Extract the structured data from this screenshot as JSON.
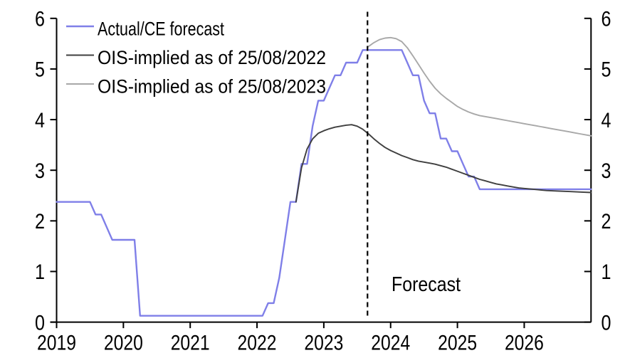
{
  "chart": {
    "background": "#ffffff",
    "axis_color": "#000000",
    "forecast_divider_style": "dashed"
  },
  "chart_data": {
    "type": "line",
    "title": "",
    "xlabel": "",
    "ylabel": "",
    "grid": false,
    "legend_position": "top-left",
    "xlim": [
      2019,
      2027
    ],
    "ylim": [
      0,
      6
    ],
    "x_ticks": [
      "2019",
      "2020",
      "2021",
      "2022",
      "2023",
      "2024",
      "2025",
      "2026"
    ],
    "x_tick_values": [
      2019,
      2020,
      2021,
      2022,
      2023,
      2024,
      2025,
      2026
    ],
    "y_ticks": [
      "0",
      "1",
      "2",
      "3",
      "4",
      "5",
      "6"
    ],
    "y_tick_values": [
      0,
      1,
      2,
      3,
      4,
      5,
      6
    ],
    "dual_y_axis": true,
    "annotations": [
      {
        "type": "vline",
        "x": 2023.654,
        "label": "Forecast",
        "style": "dashed",
        "color": "#000000"
      }
    ],
    "series": [
      {
        "name": "Actual/CE forecast",
        "color": "#7f7fe8",
        "width": 2.4,
        "points": [
          [
            2019.0,
            2.375
          ],
          [
            2019.5,
            2.375
          ],
          [
            2019.583,
            2.125
          ],
          [
            2019.667,
            2.125
          ],
          [
            2019.75,
            1.875
          ],
          [
            2019.833,
            1.625
          ],
          [
            2020.167,
            1.625
          ],
          [
            2020.25,
            0.125
          ],
          [
            2022.083,
            0.125
          ],
          [
            2022.167,
            0.375
          ],
          [
            2022.25,
            0.375
          ],
          [
            2022.333,
            0.875
          ],
          [
            2022.417,
            1.625
          ],
          [
            2022.5,
            2.375
          ],
          [
            2022.583,
            2.375
          ],
          [
            2022.667,
            3.125
          ],
          [
            2022.75,
            3.125
          ],
          [
            2022.833,
            3.875
          ],
          [
            2022.917,
            4.375
          ],
          [
            2023.0,
            4.375
          ],
          [
            2023.083,
            4.625
          ],
          [
            2023.167,
            4.875
          ],
          [
            2023.25,
            4.875
          ],
          [
            2023.333,
            5.125
          ],
          [
            2023.5,
            5.125
          ],
          [
            2023.583,
            5.375
          ],
          [
            2024.167,
            5.375
          ],
          [
            2024.25,
            5.125
          ],
          [
            2024.333,
            4.875
          ],
          [
            2024.417,
            4.875
          ],
          [
            2024.5,
            4.375
          ],
          [
            2024.583,
            4.125
          ],
          [
            2024.667,
            4.125
          ],
          [
            2024.75,
            3.625
          ],
          [
            2024.833,
            3.625
          ],
          [
            2024.917,
            3.375
          ],
          [
            2025.0,
            3.375
          ],
          [
            2025.083,
            3.125
          ],
          [
            2025.167,
            2.875
          ],
          [
            2025.25,
            2.875
          ],
          [
            2025.333,
            2.625
          ],
          [
            2027.0,
            2.625
          ]
        ]
      },
      {
        "name": "OIS-implied as of 25/08/2022",
        "color": "#3f3f3f",
        "width": 1.9,
        "points": [
          [
            2022.583,
            2.375
          ],
          [
            2022.667,
            3.05
          ],
          [
            2022.75,
            3.42
          ],
          [
            2022.833,
            3.62
          ],
          [
            2022.917,
            3.73
          ],
          [
            2023.0,
            3.78
          ],
          [
            2023.083,
            3.82
          ],
          [
            2023.167,
            3.85
          ],
          [
            2023.25,
            3.87
          ],
          [
            2023.333,
            3.89
          ],
          [
            2023.417,
            3.9
          ],
          [
            2023.5,
            3.87
          ],
          [
            2023.583,
            3.81
          ],
          [
            2023.667,
            3.72
          ],
          [
            2023.75,
            3.62
          ],
          [
            2023.833,
            3.53
          ],
          [
            2023.917,
            3.45
          ],
          [
            2024.0,
            3.39
          ],
          [
            2024.083,
            3.34
          ],
          [
            2024.167,
            3.29
          ],
          [
            2024.25,
            3.25
          ],
          [
            2024.333,
            3.21
          ],
          [
            2024.417,
            3.18
          ],
          [
            2024.5,
            3.16
          ],
          [
            2024.583,
            3.14
          ],
          [
            2024.667,
            3.12
          ],
          [
            2024.75,
            3.09
          ],
          [
            2024.833,
            3.06
          ],
          [
            2024.917,
            3.02
          ],
          [
            2025.0,
            2.98
          ],
          [
            2025.083,
            2.94
          ],
          [
            2025.167,
            2.9
          ],
          [
            2025.25,
            2.86
          ],
          [
            2025.333,
            2.82
          ],
          [
            2025.417,
            2.79
          ],
          [
            2025.5,
            2.76
          ],
          [
            2025.583,
            2.73
          ],
          [
            2025.667,
            2.71
          ],
          [
            2025.75,
            2.69
          ],
          [
            2025.833,
            2.67
          ],
          [
            2025.917,
            2.65
          ],
          [
            2026.0,
            2.64
          ],
          [
            2026.167,
            2.62
          ],
          [
            2026.333,
            2.6
          ],
          [
            2026.5,
            2.59
          ],
          [
            2026.667,
            2.58
          ],
          [
            2026.833,
            2.57
          ],
          [
            2027.0,
            2.56
          ]
        ]
      },
      {
        "name": "OIS-implied as of 25/08/2023",
        "color": "#a8a8a8",
        "width": 1.9,
        "points": [
          [
            2023.654,
            5.43
          ],
          [
            2023.75,
            5.52
          ],
          [
            2023.833,
            5.58
          ],
          [
            2023.917,
            5.61
          ],
          [
            2024.0,
            5.62
          ],
          [
            2024.083,
            5.6
          ],
          [
            2024.167,
            5.54
          ],
          [
            2024.25,
            5.42
          ],
          [
            2024.333,
            5.26
          ],
          [
            2024.417,
            5.09
          ],
          [
            2024.5,
            4.92
          ],
          [
            2024.583,
            4.76
          ],
          [
            2024.667,
            4.62
          ],
          [
            2024.75,
            4.51
          ],
          [
            2024.833,
            4.42
          ],
          [
            2024.917,
            4.34
          ],
          [
            2025.0,
            4.26
          ],
          [
            2025.083,
            4.2
          ],
          [
            2025.167,
            4.15
          ],
          [
            2025.25,
            4.11
          ],
          [
            2025.333,
            4.08
          ],
          [
            2025.417,
            4.06
          ],
          [
            2025.5,
            4.04
          ],
          [
            2025.583,
            4.02
          ],
          [
            2025.667,
            4.0
          ],
          [
            2025.75,
            3.98
          ],
          [
            2025.833,
            3.96
          ],
          [
            2025.917,
            3.94
          ],
          [
            2026.0,
            3.92
          ],
          [
            2026.083,
            3.9
          ],
          [
            2026.167,
            3.88
          ],
          [
            2026.25,
            3.86
          ],
          [
            2026.333,
            3.84
          ],
          [
            2026.417,
            3.82
          ],
          [
            2026.5,
            3.8
          ],
          [
            2026.583,
            3.78
          ],
          [
            2026.667,
            3.76
          ],
          [
            2026.75,
            3.74
          ],
          [
            2026.833,
            3.72
          ],
          [
            2026.917,
            3.7
          ],
          [
            2027.0,
            3.68
          ]
        ]
      }
    ]
  }
}
